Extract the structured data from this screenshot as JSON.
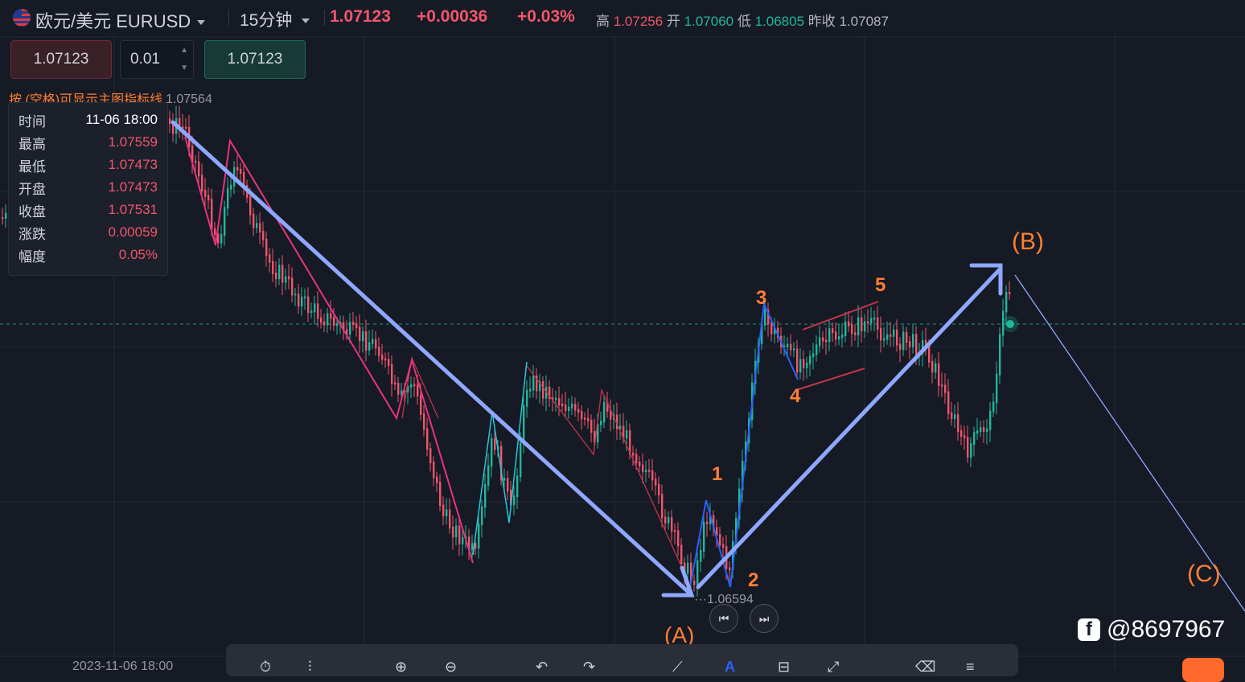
{
  "header": {
    "symbol_cn": "欧元/美元",
    "symbol_code": "EURUSD",
    "interval": "15分钟",
    "price": "1.07123",
    "change": "+0.00036",
    "change_pct": "+0.03%",
    "high_label": "高",
    "high": "1.07256",
    "open_label": "开",
    "open": "1.07060",
    "low_label": "低",
    "low": "1.06805",
    "prev_close_label": "昨收",
    "prev_close": "1.07087"
  },
  "trade": {
    "sell_price": "1.07123",
    "lot": "0.01",
    "buy_price": "1.07123"
  },
  "hint": "按 (空格)可显示主图指标线",
  "info_panel": {
    "rows": [
      {
        "label": "时间",
        "value": "11-06 18:00"
      },
      {
        "label": "最高",
        "value": "1.07559"
      },
      {
        "label": "最低",
        "value": "1.07473"
      },
      {
        "label": "开盘",
        "value": "1.07473"
      },
      {
        "label": "收盘",
        "value": "1.07531"
      },
      {
        "label": "涨跌",
        "value": "0.00059"
      },
      {
        "label": "幅度",
        "value": "0.05%"
      }
    ]
  },
  "price_marks": {
    "high_mark": "1.07564",
    "low_mark": "1.06594"
  },
  "wave_labels": {
    "A": "(A)",
    "B": "(B)",
    "C": "(C)",
    "w1": "1",
    "w2": "2",
    "w3": "3",
    "w4": "4",
    "w5": "5"
  },
  "time_axis": {
    "label": "2023-11-06 18:00"
  },
  "watermark": "@8697967",
  "colors": {
    "background": "#161a25",
    "up": "#21b79a",
    "down": "#f0566c",
    "wave_arrow": "#8fa8ff",
    "pink_line": "#e8337d",
    "wave_label": "#ff7f32"
  }
}
